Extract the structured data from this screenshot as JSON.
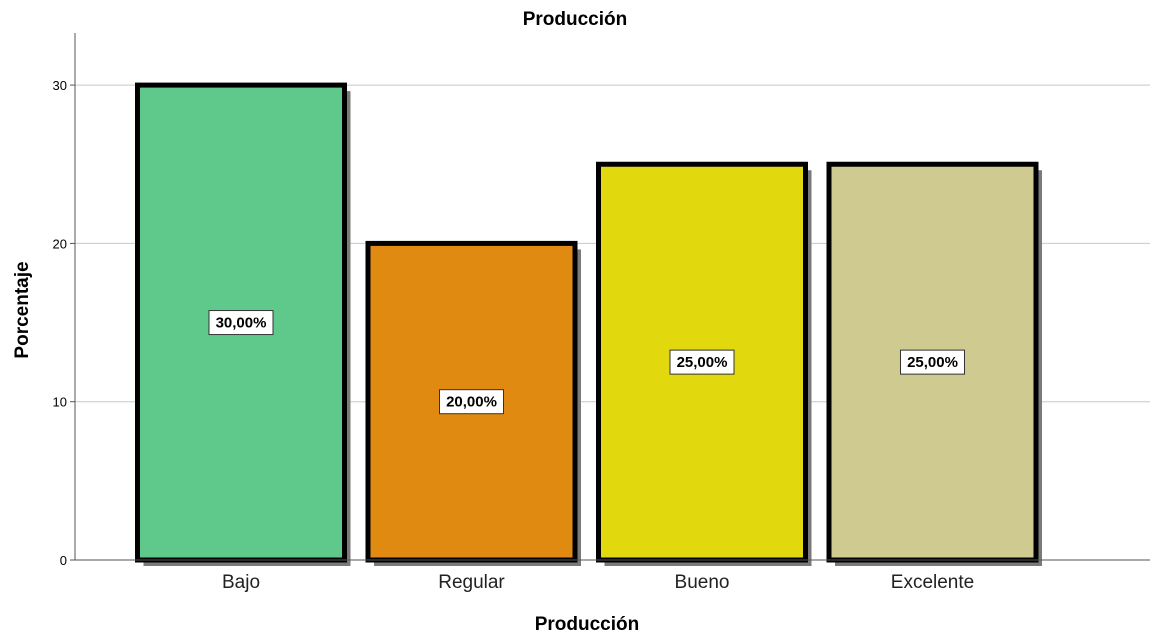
{
  "chart_data": {
    "type": "bar",
    "title": "Producción",
    "xlabel": "Producción",
    "ylabel": "Porcentaje",
    "categories": [
      "Bajo",
      "Regular",
      "Bueno",
      "Excelente"
    ],
    "values": [
      30,
      20,
      25,
      25
    ],
    "data_labels": [
      "30,00%",
      "20,00%",
      "25,00%",
      "25,00%"
    ],
    "colors": [
      "#5ec98a",
      "#e08a12",
      "#e2d80e",
      "#cfca90"
    ],
    "ylim": [
      0,
      33
    ],
    "yticks": [
      0,
      10,
      20,
      30
    ],
    "ytick_labels": [
      "0",
      "10",
      "20",
      "30"
    ],
    "grid": true,
    "legend": "none"
  }
}
